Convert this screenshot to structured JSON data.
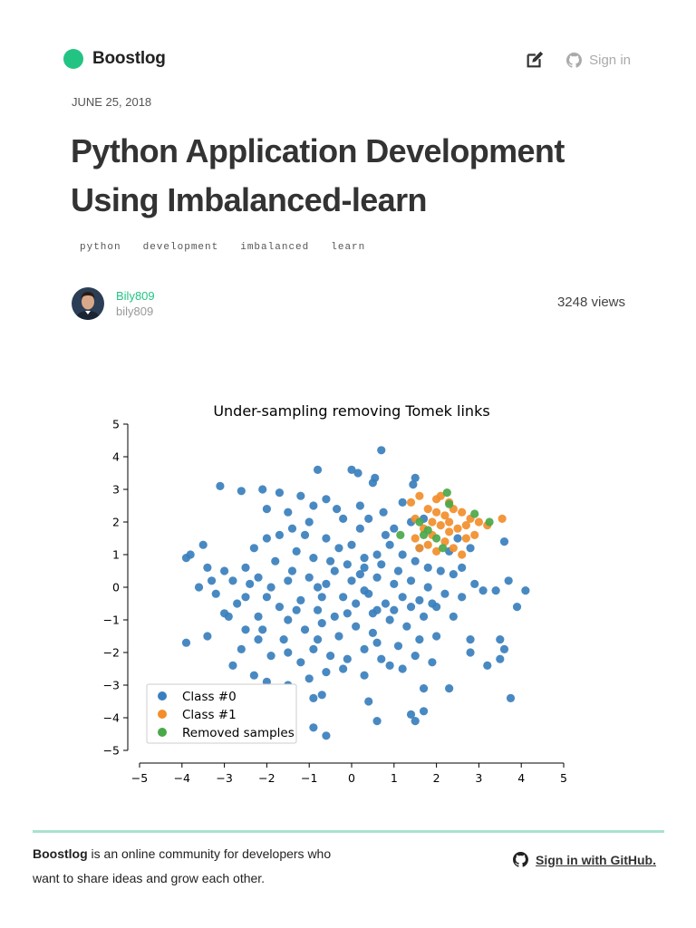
{
  "brand": {
    "name": "Boostlog",
    "color": "#23c483"
  },
  "header": {
    "signin_label": "Sign in",
    "edit_icon": "edit-icon",
    "github_icon": "github-icon"
  },
  "post": {
    "date": "JUNE 25, 2018",
    "title": "Python Application Development Using Imbalanced-learn",
    "tags": [
      "python",
      "development",
      "imbalanced",
      "learn"
    ],
    "author": {
      "name": "Bily809",
      "handle": "bily809"
    },
    "views": "3248 views"
  },
  "chart_data": {
    "type": "scatter",
    "title": "Under-sampling removing Tomek links",
    "xlabel": "",
    "ylabel": "",
    "xlim": [
      -5,
      5
    ],
    "ylim": [
      -5,
      5
    ],
    "xticks": [
      "−5",
      "−4",
      "−3",
      "−2",
      "−1",
      "0",
      "1",
      "2",
      "3",
      "4",
      "5"
    ],
    "yticks": [
      "5",
      "4",
      "3",
      "2",
      "1",
      "0",
      "−1",
      "−2",
      "−3",
      "−4",
      "−5"
    ],
    "grid": false,
    "legend_position": "bottom-left",
    "series": [
      {
        "name": "Class #0",
        "color": "#3a7fbd",
        "points": [
          [
            0.7,
            4.2
          ],
          [
            -3.1,
            3.1
          ],
          [
            -2.6,
            2.95
          ],
          [
            -2.1,
            3.0
          ],
          [
            -1.7,
            2.9
          ],
          [
            -0.8,
            3.6
          ],
          [
            0.0,
            3.6
          ],
          [
            0.15,
            3.5
          ],
          [
            0.5,
            3.2
          ],
          [
            0.55,
            3.35
          ],
          [
            1.5,
            3.35
          ],
          [
            1.45,
            3.15
          ],
          [
            -1.2,
            2.8
          ],
          [
            -0.9,
            2.5
          ],
          [
            -0.6,
            2.7
          ],
          [
            -0.35,
            2.4
          ],
          [
            0.2,
            2.5
          ],
          [
            0.4,
            2.1
          ],
          [
            0.75,
            2.3
          ],
          [
            1.0,
            1.8
          ],
          [
            1.4,
            2.0
          ],
          [
            -2.0,
            2.4
          ],
          [
            -1.5,
            2.3
          ],
          [
            -3.9,
            0.9
          ],
          [
            -3.8,
            1.0
          ],
          [
            -3.5,
            1.3
          ],
          [
            -3.4,
            0.6
          ],
          [
            -3.0,
            0.5
          ],
          [
            -2.8,
            0.2
          ],
          [
            -2.5,
            0.6
          ],
          [
            -2.3,
            1.2
          ],
          [
            -2.0,
            1.5
          ],
          [
            -1.7,
            1.6
          ],
          [
            -1.4,
            1.8
          ],
          [
            -1.0,
            2.0
          ],
          [
            -0.6,
            1.5
          ],
          [
            -0.3,
            1.2
          ],
          [
            0.0,
            1.3
          ],
          [
            0.3,
            0.9
          ],
          [
            0.6,
            1.0
          ],
          [
            0.9,
            1.3
          ],
          [
            1.2,
            1.0
          ],
          [
            1.5,
            0.8
          ],
          [
            1.8,
            0.6
          ],
          [
            2.1,
            0.5
          ],
          [
            2.4,
            0.4
          ],
          [
            2.6,
            0.6
          ],
          [
            2.9,
            0.1
          ],
          [
            3.1,
            -0.1
          ],
          [
            3.4,
            -0.1
          ],
          [
            3.6,
            1.4
          ],
          [
            3.7,
            0.2
          ],
          [
            4.1,
            -0.1
          ],
          [
            3.9,
            -0.6
          ],
          [
            -3.6,
            0.0
          ],
          [
            -3.2,
            -0.2
          ],
          [
            -3.0,
            -0.8
          ],
          [
            -2.7,
            -0.5
          ],
          [
            -2.5,
            -1.3
          ],
          [
            -2.2,
            -0.9
          ],
          [
            -2.0,
            -0.3
          ],
          [
            -1.7,
            -0.6
          ],
          [
            -1.5,
            0.2
          ],
          [
            -1.2,
            -0.4
          ],
          [
            -1.0,
            0.3
          ],
          [
            -0.8,
            -0.7
          ],
          [
            -0.6,
            0.1
          ],
          [
            -0.4,
            0.5
          ],
          [
            -0.2,
            -0.3
          ],
          [
            0.0,
            0.2
          ],
          [
            0.2,
            0.4
          ],
          [
            0.4,
            -0.2
          ],
          [
            0.6,
            0.3
          ],
          [
            0.8,
            -0.5
          ],
          [
            1.0,
            0.1
          ],
          [
            1.2,
            -0.3
          ],
          [
            1.4,
            0.2
          ],
          [
            1.6,
            -0.4
          ],
          [
            1.8,
            0.0
          ],
          [
            2.0,
            -0.6
          ],
          [
            2.2,
            -0.2
          ],
          [
            -0.9,
            0.9
          ],
          [
            -0.5,
            0.8
          ],
          [
            -0.1,
            0.7
          ],
          [
            0.3,
            0.6
          ],
          [
            0.7,
            0.7
          ],
          [
            -1.3,
            1.1
          ],
          [
            -1.8,
            0.8
          ],
          [
            -2.2,
            0.3
          ],
          [
            -1.5,
            -1.0
          ],
          [
            -1.1,
            -1.3
          ],
          [
            -0.7,
            -1.1
          ],
          [
            -0.3,
            -1.5
          ],
          [
            0.1,
            -1.2
          ],
          [
            0.5,
            -1.4
          ],
          [
            0.9,
            -1.0
          ],
          [
            1.3,
            -1.2
          ],
          [
            1.7,
            -0.9
          ],
          [
            2.0,
            -1.5
          ],
          [
            -2.6,
            -1.9
          ],
          [
            -2.2,
            -1.6
          ],
          [
            -1.9,
            -2.1
          ],
          [
            -1.5,
            -2.0
          ],
          [
            -1.2,
            -2.3
          ],
          [
            -0.9,
            -1.9
          ],
          [
            -0.5,
            -2.1
          ],
          [
            -0.1,
            -2.2
          ],
          [
            0.3,
            -1.9
          ],
          [
            0.7,
            -2.2
          ],
          [
            1.1,
            -1.8
          ],
          [
            1.5,
            -2.1
          ],
          [
            1.9,
            -2.3
          ],
          [
            -3.9,
            -1.7
          ],
          [
            -3.4,
            -1.5
          ],
          [
            -2.8,
            -2.4
          ],
          [
            -2.3,
            -2.7
          ],
          [
            -2.0,
            -2.9
          ],
          [
            -1.5,
            -3.0
          ],
          [
            -1.0,
            -2.8
          ],
          [
            -0.6,
            -2.6
          ],
          [
            -0.2,
            -2.5
          ],
          [
            0.3,
            -2.7
          ],
          [
            0.9,
            -2.4
          ],
          [
            1.2,
            -2.5
          ],
          [
            1.7,
            -3.1
          ],
          [
            2.3,
            -3.1
          ],
          [
            -0.9,
            -3.4
          ],
          [
            -0.7,
            -3.3
          ],
          [
            0.4,
            -3.5
          ],
          [
            1.4,
            -3.9
          ],
          [
            1.5,
            -4.1
          ],
          [
            1.7,
            -3.8
          ],
          [
            0.6,
            -4.1
          ],
          [
            -0.9,
            -4.3
          ],
          [
            -0.6,
            -4.55
          ],
          [
            2.8,
            -1.6
          ],
          [
            2.8,
            -2.0
          ],
          [
            3.2,
            -2.4
          ],
          [
            3.5,
            -2.2
          ],
          [
            3.5,
            -1.6
          ],
          [
            3.6,
            -1.9
          ],
          [
            3.75,
            -3.4
          ],
          [
            -1.4,
            0.5
          ],
          [
            -0.8,
            0.0
          ],
          [
            0.1,
            -0.5
          ],
          [
            0.5,
            -0.8
          ],
          [
            1.1,
            0.5
          ],
          [
            1.6,
            1.2
          ],
          [
            2.3,
            1.1
          ],
          [
            2.5,
            1.5
          ],
          [
            2.8,
            1.2
          ],
          [
            -2.9,
            -0.9
          ],
          [
            -2.4,
            0.1
          ],
          [
            -1.6,
            -1.6
          ],
          [
            -0.4,
            -0.9
          ],
          [
            0.2,
            1.8
          ],
          [
            0.8,
            1.6
          ],
          [
            1.7,
            2.1
          ],
          [
            1.2,
            2.6
          ],
          [
            -1.1,
            1.6
          ],
          [
            -2.5,
            -0.3
          ],
          [
            -0.2,
            2.1
          ],
          [
            0.6,
            -0.7
          ],
          [
            1.9,
            -0.5
          ],
          [
            -1.3,
            -0.7
          ],
          [
            -0.1,
            -0.8
          ],
          [
            1.0,
            -0.7
          ],
          [
            2.6,
            -0.3
          ],
          [
            -3.3,
            0.2
          ],
          [
            -1.9,
            0.0
          ],
          [
            -0.7,
            -0.3
          ],
          [
            0.3,
            -0.1
          ],
          [
            1.4,
            -0.6
          ],
          [
            2.4,
            -0.9
          ],
          [
            -2.1,
            -1.3
          ],
          [
            -0.8,
            -1.6
          ],
          [
            0.6,
            -1.7
          ],
          [
            1.6,
            -1.6
          ]
        ]
      },
      {
        "name": "Class #1",
        "color": "#f28e2b",
        "points": [
          [
            1.4,
            2.6
          ],
          [
            1.6,
            2.8
          ],
          [
            2.0,
            2.7
          ],
          [
            2.1,
            2.8
          ],
          [
            2.3,
            2.6
          ],
          [
            1.8,
            2.4
          ],
          [
            2.0,
            2.3
          ],
          [
            2.2,
            2.2
          ],
          [
            2.4,
            2.4
          ],
          [
            2.6,
            2.3
          ],
          [
            2.8,
            2.1
          ],
          [
            3.0,
            2.0
          ],
          [
            3.2,
            1.9
          ],
          [
            3.55,
            2.1
          ],
          [
            1.5,
            1.5
          ],
          [
            1.7,
            1.8
          ],
          [
            1.9,
            1.6
          ],
          [
            2.1,
            1.9
          ],
          [
            2.3,
            1.7
          ],
          [
            2.5,
            1.8
          ],
          [
            2.7,
            1.5
          ],
          [
            2.9,
            1.6
          ],
          [
            1.6,
            1.2
          ],
          [
            1.8,
            1.3
          ],
          [
            2.0,
            1.1
          ],
          [
            2.2,
            1.4
          ],
          [
            2.4,
            1.2
          ],
          [
            2.6,
            1.0
          ],
          [
            1.5,
            2.1
          ],
          [
            1.9,
            2.0
          ],
          [
            2.3,
            2.0
          ],
          [
            2.7,
            1.9
          ]
        ]
      },
      {
        "name": "Removed samples",
        "color": "#4aa84a",
        "points": [
          [
            2.25,
            2.9
          ],
          [
            2.3,
            2.55
          ],
          [
            1.6,
            2.0
          ],
          [
            1.8,
            1.75
          ],
          [
            2.0,
            1.5
          ],
          [
            1.15,
            1.6
          ],
          [
            1.7,
            1.6
          ],
          [
            2.15,
            1.2
          ],
          [
            2.9,
            2.25
          ],
          [
            3.25,
            2.0
          ]
        ]
      }
    ]
  },
  "footer": {
    "brand": "Boostlog",
    "text": " is an online community for developers who want to share ideas and grow each other.",
    "github_label": "Sign in with GitHub."
  }
}
